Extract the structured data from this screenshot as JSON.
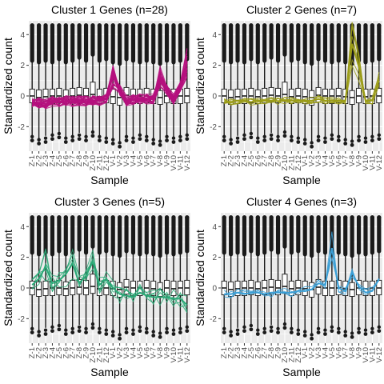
{
  "colors": {
    "panel_bg": "#ebebeb",
    "grid": "#ffffff",
    "box_fill": "#ffffff",
    "box_stroke": "#1a1a1a",
    "outlier": "#1a1a1a",
    "text": "#000000",
    "tick_text": "#4d4d4d"
  },
  "chart_data": [
    {
      "type": "box+line",
      "title": "Cluster 1 Genes (n=28)",
      "xlabel": "Sample",
      "ylabel": "Standardized count",
      "ylim": [
        -3.6,
        4.9
      ],
      "yticks": [
        -2,
        0,
        2,
        4
      ],
      "grid": true,
      "line_color": "#b5107e",
      "categories": [
        "Z-1",
        "Z-2",
        "Z-3",
        "Z-4",
        "Z-5",
        "Z-6",
        "Z-7",
        "Z-8",
        "Z-9",
        "Z-10",
        "Z-11",
        "Z-12",
        "V-1",
        "V-2",
        "V-3",
        "V-4",
        "V-5",
        "V-6",
        "V-7",
        "V-8",
        "V-9",
        "V-10",
        "V-11",
        "V-12"
      ],
      "boxes": {
        "q1": [
          -0.45,
          -0.55,
          -0.5,
          -0.5,
          -0.45,
          -0.5,
          -0.45,
          -0.4,
          -0.45,
          -0.35,
          -0.5,
          -0.45,
          -0.5,
          -0.6,
          -0.4,
          -0.5,
          -0.5,
          -0.45,
          -0.5,
          -0.55,
          -0.45,
          -0.5,
          -0.5,
          -0.45
        ],
        "median": [
          0.0,
          -0.1,
          -0.05,
          0.0,
          0.0,
          -0.05,
          0.0,
          0.05,
          0.0,
          0.1,
          -0.05,
          0.0,
          -0.05,
          -0.1,
          0.05,
          0.0,
          0.0,
          0.0,
          -0.05,
          -0.1,
          0.0,
          -0.05,
          0.0,
          0.0
        ],
        "q3": [
          0.45,
          0.4,
          0.45,
          0.45,
          0.5,
          0.4,
          0.5,
          0.55,
          0.5,
          0.9,
          0.45,
          0.5,
          0.45,
          0.35,
          0.55,
          0.45,
          0.45,
          0.5,
          0.45,
          0.35,
          0.5,
          0.45,
          0.45,
          0.5
        ],
        "lower_whisker": [
          -2.6,
          -2.8,
          -2.6,
          -2.5,
          -2.4,
          -2.7,
          -2.6,
          -2.4,
          -2.6,
          -2.3,
          -2.6,
          -2.7,
          -2.8,
          -3.0,
          -2.6,
          -2.7,
          -2.5,
          -2.6,
          -2.8,
          -2.9,
          -2.6,
          -2.7,
          -2.6,
          -2.5
        ],
        "upper_whisker": [
          2.3,
          2.2,
          2.3,
          2.2,
          2.4,
          2.2,
          2.3,
          2.5,
          2.3,
          2.7,
          2.3,
          2.4,
          2.2,
          2.1,
          2.4,
          2.3,
          2.2,
          2.3,
          2.2,
          2.1,
          2.3,
          2.2,
          2.3,
          2.4
        ],
        "outliers_high": [
          4.6,
          4.6,
          4.6,
          4.6,
          4.6,
          4.6,
          4.6,
          4.6,
          4.6,
          4.6,
          4.6,
          4.6,
          4.6,
          4.6,
          4.6,
          4.6,
          4.6,
          4.6,
          4.6,
          4.6,
          4.6,
          4.6,
          4.6,
          4.6
        ],
        "outliers_low": [
          -2.9,
          -3.1,
          -3.0,
          -2.8,
          -2.7,
          -3.0,
          -2.9,
          -2.8,
          -2.9,
          -2.6,
          -2.9,
          -3.0,
          -3.1,
          -3.3,
          -2.9,
          -3.0,
          -2.8,
          -2.9,
          -3.1,
          -3.2,
          -2.9,
          -3.0,
          -2.9,
          -2.8
        ]
      },
      "profile_mean": [
        -0.4,
        -0.45,
        -0.5,
        -0.35,
        -0.4,
        -0.3,
        -0.35,
        -0.3,
        -0.35,
        -0.3,
        -0.3,
        -0.2,
        1.4,
        0.4,
        -0.3,
        -0.25,
        -0.2,
        -0.2,
        -0.2,
        1.3,
        0.4,
        -0.2,
        0.6,
        2.2
      ],
      "profile_spread": 0.35
    },
    {
      "type": "box+line",
      "title": "Cluster 2 Genes (n=7)",
      "xlabel": "Sample",
      "ylabel": "Standardized count",
      "ylim": [
        -3.6,
        4.9
      ],
      "yticks": [
        -2,
        0,
        2,
        4
      ],
      "grid": true,
      "line_color": "#9b9c17",
      "categories": [
        "Z-1",
        "Z-2",
        "Z-3",
        "Z-4",
        "Z-5",
        "Z-6",
        "Z-7",
        "Z-8",
        "Z-9",
        "Z-10",
        "Z-11",
        "Z-12",
        "V-1",
        "V-2",
        "V-3",
        "V-4",
        "V-5",
        "V-6",
        "V-7",
        "V-8",
        "V-9",
        "V-10",
        "V-11",
        "V-12"
      ],
      "boxes": {
        "q1": [
          -0.45,
          -0.55,
          -0.5,
          -0.5,
          -0.45,
          -0.5,
          -0.45,
          -0.4,
          -0.45,
          -0.35,
          -0.5,
          -0.45,
          -0.5,
          -0.6,
          -0.4,
          -0.5,
          -0.5,
          -0.45,
          -0.5,
          -0.55,
          -0.45,
          -0.5,
          -0.5,
          -0.45
        ],
        "median": [
          0.0,
          -0.1,
          -0.05,
          0.0,
          0.0,
          -0.05,
          0.0,
          0.05,
          0.0,
          0.1,
          -0.05,
          0.0,
          -0.05,
          -0.1,
          0.05,
          0.0,
          0.0,
          0.0,
          -0.05,
          -0.1,
          0.0,
          -0.05,
          0.0,
          0.0
        ],
        "q3": [
          0.45,
          0.4,
          0.45,
          0.45,
          0.5,
          0.4,
          0.5,
          0.55,
          0.5,
          0.9,
          0.45,
          0.5,
          0.45,
          0.35,
          0.55,
          0.45,
          0.45,
          0.5,
          0.45,
          0.35,
          0.5,
          0.45,
          0.45,
          0.5
        ],
        "lower_whisker": [
          -2.6,
          -2.8,
          -2.6,
          -2.5,
          -2.4,
          -2.7,
          -2.6,
          -2.4,
          -2.6,
          -2.3,
          -2.6,
          -2.7,
          -2.8,
          -3.0,
          -2.6,
          -2.7,
          -2.5,
          -2.6,
          -2.8,
          -2.9,
          -2.6,
          -2.7,
          -2.6,
          -2.5
        ],
        "upper_whisker": [
          2.3,
          2.2,
          2.3,
          2.2,
          2.4,
          2.2,
          2.3,
          2.5,
          2.3,
          2.7,
          2.3,
          2.4,
          2.2,
          2.1,
          2.4,
          2.3,
          2.2,
          2.3,
          2.2,
          2.1,
          2.3,
          2.2,
          2.3,
          2.4
        ],
        "outliers_high": [
          4.6,
          4.6,
          4.6,
          4.6,
          4.6,
          4.6,
          4.6,
          4.6,
          4.6,
          4.6,
          4.6,
          4.6,
          4.6,
          4.6,
          4.6,
          4.6,
          4.6,
          4.6,
          4.6,
          4.6,
          4.6,
          4.6,
          4.6,
          4.6
        ],
        "outliers_low": [
          -2.9,
          -3.1,
          -3.0,
          -2.8,
          -2.7,
          -3.0,
          -2.9,
          -2.8,
          -2.9,
          -2.6,
          -2.9,
          -3.0,
          -3.1,
          -3.3,
          -2.9,
          -3.0,
          -2.8,
          -2.9,
          -3.1,
          -3.2,
          -2.9,
          -3.0,
          -2.9,
          -2.8
        ]
      },
      "profile_mean": [
        -0.4,
        -0.4,
        -0.3,
        -0.3,
        -0.4,
        -0.3,
        -0.3,
        -0.3,
        -0.35,
        -0.3,
        -0.3,
        -0.3,
        -0.3,
        -0.3,
        -0.2,
        -0.3,
        -0.3,
        -0.3,
        -0.3,
        3.4,
        1.9,
        -0.3,
        -0.3,
        1.0
      ],
      "profile_spread": 0.25
    },
    {
      "type": "box+line",
      "title": "Cluster 3 Genes (n=5)",
      "xlabel": "Sample",
      "ylabel": "Standardized count",
      "ylim": [
        -3.6,
        4.9
      ],
      "yticks": [
        -2,
        0,
        2,
        4
      ],
      "grid": true,
      "line_color": "#2aa876",
      "categories": [
        "Z-1",
        "Z-2",
        "Z-3",
        "Z-4",
        "Z-5",
        "Z-6",
        "Z-7",
        "Z-8",
        "Z-9",
        "Z-10",
        "Z-11",
        "Z-12",
        "V-1",
        "V-2",
        "V-3",
        "V-4",
        "V-5",
        "V-6",
        "V-7",
        "V-8",
        "V-9",
        "V-10",
        "V-11",
        "V-12"
      ],
      "boxes": {
        "q1": [
          -0.45,
          -0.55,
          -0.5,
          -0.5,
          -0.45,
          -0.5,
          -0.45,
          -0.4,
          -0.45,
          -0.35,
          -0.5,
          -0.45,
          -0.5,
          -0.6,
          -0.4,
          -0.5,
          -0.5,
          -0.45,
          -0.5,
          -0.55,
          -0.45,
          -0.5,
          -0.5,
          -0.45
        ],
        "median": [
          0.0,
          -0.1,
          -0.05,
          0.0,
          0.0,
          -0.05,
          0.0,
          0.05,
          0.0,
          0.1,
          -0.05,
          0.0,
          -0.05,
          -0.1,
          0.05,
          0.0,
          0.0,
          0.0,
          -0.05,
          -0.1,
          0.0,
          -0.05,
          0.0,
          0.0
        ],
        "q3": [
          0.45,
          0.4,
          0.45,
          0.45,
          0.5,
          0.4,
          0.5,
          0.55,
          0.5,
          0.9,
          0.45,
          0.5,
          0.45,
          0.35,
          0.55,
          0.45,
          0.45,
          0.5,
          0.45,
          0.35,
          0.5,
          0.45,
          0.45,
          0.5
        ],
        "lower_whisker": [
          -2.6,
          -2.8,
          -2.6,
          -2.5,
          -2.4,
          -2.7,
          -2.6,
          -2.4,
          -2.6,
          -2.3,
          -2.6,
          -2.7,
          -2.8,
          -3.0,
          -2.6,
          -2.7,
          -2.5,
          -2.6,
          -2.8,
          -2.9,
          -2.6,
          -2.7,
          -2.6,
          -2.5
        ],
        "upper_whisker": [
          2.3,
          2.2,
          2.3,
          2.2,
          2.4,
          2.2,
          2.3,
          2.5,
          2.3,
          2.7,
          2.3,
          2.4,
          2.2,
          2.1,
          2.4,
          2.3,
          2.2,
          2.3,
          2.2,
          2.1,
          2.3,
          2.2,
          2.3,
          2.4
        ],
        "outliers_high": [
          4.6,
          4.6,
          4.6,
          4.6,
          4.6,
          4.6,
          4.6,
          4.6,
          4.6,
          4.6,
          4.6,
          4.6,
          4.6,
          4.6,
          4.6,
          4.6,
          4.6,
          4.6,
          4.6,
          4.6,
          4.6,
          4.6,
          4.6,
          4.6
        ],
        "outliers_low": [
          -2.9,
          -3.1,
          -3.0,
          -2.8,
          -2.7,
          -3.0,
          -2.9,
          -2.8,
          -2.9,
          -2.6,
          -2.9,
          -3.0,
          -3.1,
          -3.3,
          -2.9,
          -3.0,
          -2.8,
          -2.9,
          -3.1,
          -3.2,
          -2.9,
          -3.0,
          -2.9,
          -2.8
        ]
      },
      "profile_mean": [
        0.2,
        0.6,
        1.4,
        0.3,
        0.5,
        0.9,
        1.6,
        0.3,
        0.8,
        1.7,
        0.2,
        0.6,
        0.0,
        -0.4,
        -0.5,
        -0.6,
        -0.3,
        -0.5,
        -0.6,
        -0.6,
        -0.6,
        -0.7,
        -0.7,
        -1.1
      ],
      "profile_spread": 0.6
    },
    {
      "type": "box+line",
      "title": "Cluster 4 Genes (n=3)",
      "xlabel": "Sample",
      "ylabel": "Standardized count",
      "ylim": [
        -3.6,
        4.9
      ],
      "yticks": [
        -2,
        0,
        2,
        4
      ],
      "grid": true,
      "line_color": "#3a9fd6",
      "categories": [
        "Z-1",
        "Z-2",
        "Z-3",
        "Z-4",
        "Z-5",
        "Z-6",
        "Z-7",
        "Z-8",
        "Z-9",
        "Z-10",
        "Z-11",
        "Z-12",
        "V-1",
        "V-2",
        "V-3",
        "V-4",
        "V-5",
        "V-6",
        "V-7",
        "V-8",
        "V-9",
        "V-10",
        "V-11",
        "V-12"
      ],
      "boxes": {
        "q1": [
          -0.45,
          -0.55,
          -0.5,
          -0.5,
          -0.45,
          -0.5,
          -0.45,
          -0.4,
          -0.45,
          -0.35,
          -0.5,
          -0.45,
          -0.5,
          -0.6,
          -0.4,
          -0.5,
          -0.5,
          -0.45,
          -0.5,
          -0.55,
          -0.45,
          -0.5,
          -0.5,
          -0.45
        ],
        "median": [
          0.0,
          -0.1,
          -0.05,
          0.0,
          0.0,
          -0.05,
          0.0,
          0.05,
          0.0,
          0.1,
          -0.05,
          0.0,
          -0.05,
          -0.1,
          0.05,
          0.0,
          0.0,
          0.0,
          -0.05,
          -0.1,
          0.0,
          -0.05,
          0.0,
          0.0
        ],
        "q3": [
          0.45,
          0.4,
          0.45,
          0.45,
          0.5,
          0.4,
          0.5,
          0.55,
          0.5,
          0.9,
          0.45,
          0.5,
          0.45,
          0.35,
          0.55,
          0.45,
          0.45,
          0.5,
          0.45,
          0.35,
          0.5,
          0.45,
          0.45,
          0.5
        ],
        "lower_whisker": [
          -2.6,
          -2.8,
          -2.6,
          -2.5,
          -2.4,
          -2.7,
          -2.6,
          -2.4,
          -2.6,
          -2.3,
          -2.6,
          -2.7,
          -2.8,
          -3.0,
          -2.6,
          -2.7,
          -2.5,
          -2.6,
          -2.8,
          -2.9,
          -2.6,
          -2.7,
          -2.6,
          -2.5
        ],
        "upper_whisker": [
          2.3,
          2.2,
          2.3,
          2.2,
          2.4,
          2.2,
          2.3,
          2.5,
          2.3,
          2.7,
          2.3,
          2.4,
          2.2,
          2.1,
          2.4,
          2.3,
          2.2,
          2.3,
          2.2,
          2.1,
          2.3,
          2.2,
          2.3,
          2.4
        ],
        "outliers_high": [
          4.6,
          4.6,
          4.6,
          4.6,
          4.6,
          4.6,
          4.6,
          4.6,
          4.6,
          4.6,
          4.6,
          4.6,
          4.6,
          4.6,
          4.6,
          4.6,
          4.6,
          4.6,
          4.6,
          4.6,
          4.6,
          4.6,
          4.6,
          4.6
        ],
        "outliers_low": [
          -2.9,
          -3.1,
          -3.0,
          -2.8,
          -2.7,
          -3.0,
          -2.9,
          -2.8,
          -2.9,
          -2.6,
          -2.9,
          -3.0,
          -3.1,
          -3.3,
          -2.9,
          -3.0,
          -2.8,
          -2.9,
          -3.1,
          -3.2,
          -2.9,
          -3.0,
          -2.9,
          -2.8
        ]
      },
      "profile_mean": [
        -0.4,
        -0.4,
        -0.3,
        -0.4,
        -0.3,
        -0.3,
        -0.4,
        -0.3,
        -0.3,
        -0.3,
        -0.3,
        -0.2,
        -0.2,
        -0.1,
        0.3,
        0.2,
        2.6,
        0.0,
        -0.2,
        1.0,
        0.1,
        -0.3,
        -0.2,
        0.6
      ],
      "profile_spread": 0.3
    }
  ]
}
